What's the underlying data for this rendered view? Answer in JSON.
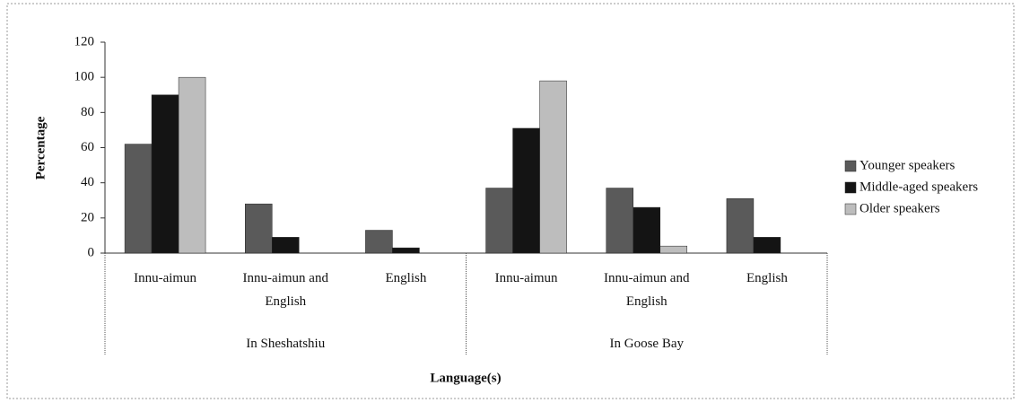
{
  "chart_data": {
    "type": "bar",
    "y_label": "Percentage",
    "x_label": "Language(s)",
    "groups": [
      {
        "label": "In Sheshatshiu",
        "categories": [
          "Innu-aimun",
          "Innu-aimun and English",
          "English"
        ]
      },
      {
        "label": "In Goose Bay",
        "categories": [
          "Innu-aimun",
          "Innu-aimun and English",
          "English"
        ]
      }
    ],
    "series": [
      {
        "name": "Younger speakers",
        "color": "#5a5a5a",
        "values": [
          62,
          28,
          13,
          37,
          37,
          31
        ]
      },
      {
        "name": "Middle-aged speakers",
        "color": "#141414",
        "values": [
          90,
          9,
          3,
          71,
          26,
          9
        ]
      },
      {
        "name": "Older speakers",
        "color": "#bdbdbd",
        "values": [
          100,
          0,
          0,
          98,
          4,
          0
        ]
      }
    ],
    "ylim": [
      0,
      120
    ],
    "yticks": [
      0,
      20,
      40,
      60,
      80,
      100,
      120
    ],
    "legend": "right"
  }
}
